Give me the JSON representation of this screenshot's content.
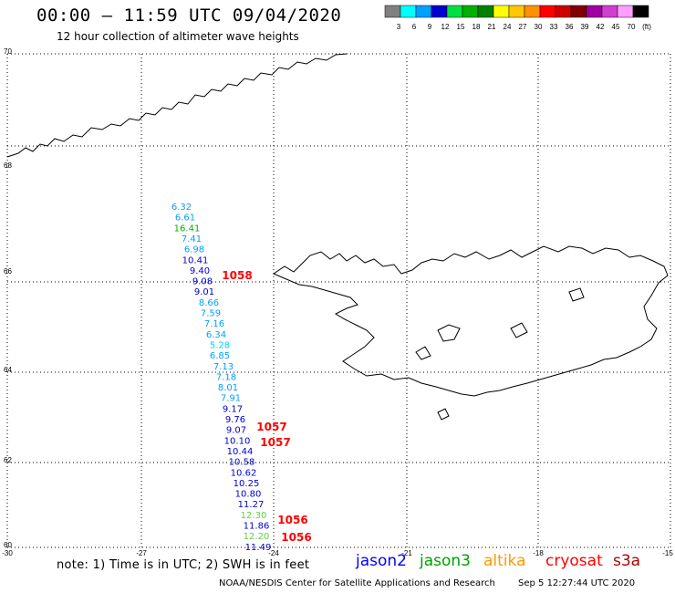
{
  "header": {
    "title": "00:00 – 11:59 UTC 09/04/2020",
    "subtitle": "12 hour collection of altimeter wave heights"
  },
  "colorbar": {
    "labels": [
      "3",
      "6",
      "9",
      "12",
      "15",
      "18",
      "21",
      "24",
      "27",
      "30",
      "33",
      "36",
      "39",
      "42",
      "45",
      "70",
      "(ft)"
    ],
    "colors": [
      "#808080",
      "#00ffff",
      "#00a0ff",
      "#0000d0",
      "#00e040",
      "#00b000",
      "#008000",
      "#ffff00",
      "#ffc800",
      "#ff9000",
      "#ff0000",
      "#d00000",
      "#800000",
      "#a000a0",
      "#d040d0",
      "#ff9cff",
      "#000000"
    ]
  },
  "map": {
    "y_ticks": [
      "70",
      "68",
      "66",
      "64",
      "62",
      "60"
    ],
    "x_ticks": [
      "-30",
      "-27",
      "-24",
      "-21",
      "-18",
      "-15"
    ],
    "observations": [
      {
        "text": "6.32",
        "color": "#00a0ff"
      },
      {
        "text": "6.61",
        "color": "#00a0ff"
      },
      {
        "text": "16.41",
        "color": "#00b000"
      },
      {
        "text": "7.41",
        "color": "#00a0ff"
      },
      {
        "text": "6.98",
        "color": "#00a0ff"
      },
      {
        "text": "10.41",
        "color": "#0000d0"
      },
      {
        "text": "9.40",
        "color": "#0000d0"
      },
      {
        "text": "9.08",
        "color": "#0000d0"
      },
      {
        "text": "9.01",
        "color": "#0000d0"
      },
      {
        "text": "8.66",
        "color": "#00a0ff"
      },
      {
        "text": "7.59",
        "color": "#00a0ff"
      },
      {
        "text": "7.16",
        "color": "#00a0ff"
      },
      {
        "text": "6.34",
        "color": "#00a0ff"
      },
      {
        "text": "5.28",
        "color": "#00d0ff"
      },
      {
        "text": "6.85",
        "color": "#00a0ff"
      },
      {
        "text": "7.13",
        "color": "#00a0ff"
      },
      {
        "text": "7.18",
        "color": "#00a0ff"
      },
      {
        "text": "8.01",
        "color": "#00a0ff"
      },
      {
        "text": "7.91",
        "color": "#00a0ff"
      },
      {
        "text": "9.17",
        "color": "#0000d0"
      },
      {
        "text": "9.76",
        "color": "#0000d0"
      },
      {
        "text": "9.07",
        "color": "#0000d0"
      },
      {
        "text": "10.10",
        "color": "#0000d0"
      },
      {
        "text": "10.44",
        "color": "#0000d0"
      },
      {
        "text": "10.58",
        "color": "#0000d0"
      },
      {
        "text": "10.62",
        "color": "#0000d0"
      },
      {
        "text": "10.25",
        "color": "#0000d0"
      },
      {
        "text": "10.80",
        "color": "#0000d0"
      },
      {
        "text": "11.27",
        "color": "#0000d0"
      },
      {
        "text": "12.30",
        "color": "#60d040"
      },
      {
        "text": "11.86",
        "color": "#0000d0"
      },
      {
        "text": "12.20",
        "color": "#60d040"
      },
      {
        "text": "11.49",
        "color": "#0000d0"
      }
    ],
    "pressures": [
      "1058",
      "1057",
      "1057",
      "1056",
      "1056"
    ],
    "pressure_color": "#ff0000"
  },
  "footer": {
    "note": "note: 1) Time is in UTC; 2) SWH is in feet",
    "satellites": [
      {
        "name": "jason2",
        "color": "#0000ff"
      },
      {
        "name": "jason3",
        "color": "#00a000"
      },
      {
        "name": "altika",
        "color": "#ff9900"
      },
      {
        "name": "cryosat",
        "color": "#ff0000"
      },
      {
        "name": "s3a",
        "color": "#b00000"
      }
    ],
    "credit": "NOAA/NESDIS Center for Satellite Applications and Research",
    "timestamp": "Sep  5 12:27:44 UTC 2020"
  }
}
